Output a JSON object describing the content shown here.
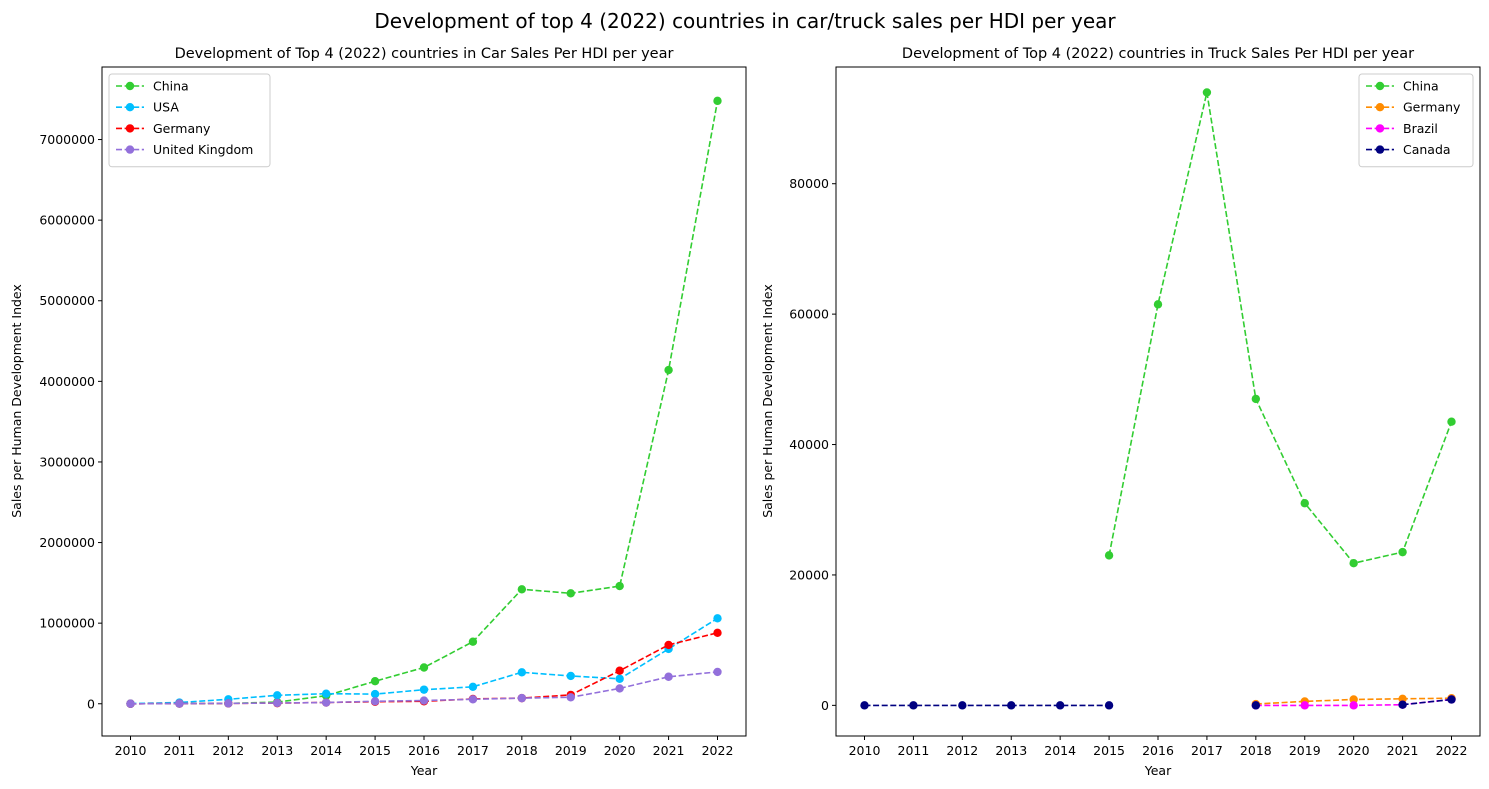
{
  "suptitle": "Development of top 4 (2022) countries in car/truck sales per HDI per year",
  "chart_data": [
    {
      "type": "line",
      "title": "Development of Top 4 (2022) countries in Car Sales Per HDI per year",
      "xlabel": "Year",
      "ylabel": "Sales per Human Development Index",
      "x": [
        "2010",
        "2011",
        "2012",
        "2013",
        "2014",
        "2015",
        "2016",
        "2017",
        "2018",
        "2019",
        "2020",
        "2021",
        "2022"
      ],
      "ylim": [
        -400000,
        7900000
      ],
      "yticks": [
        0,
        1000000,
        2000000,
        3000000,
        4000000,
        5000000,
        6000000,
        7000000
      ],
      "ytick_labels": [
        "0",
        "1000000",
        "2000000",
        "3000000",
        "4000000",
        "5000000",
        "6000000",
        "7000000"
      ],
      "grid": false,
      "legend_position": "upper left",
      "series": [
        {
          "name": "China",
          "color": "#32cd32",
          "values": [
            500,
            2000,
            5000,
            20000,
            100000,
            280000,
            450000,
            770000,
            1420000,
            1370000,
            1460000,
            4140000,
            7480000
          ]
        },
        {
          "name": "USA",
          "color": "#00bfff",
          "values": [
            2000,
            15000,
            55000,
            105000,
            125000,
            120000,
            175000,
            210000,
            390000,
            345000,
            310000,
            680000,
            1060000
          ]
        },
        {
          "name": "Germany",
          "color": "#ff0000",
          "values": [
            0,
            2000,
            4000,
            8000,
            15000,
            25000,
            30000,
            60000,
            70000,
            110000,
            410000,
            730000,
            880000
          ]
        },
        {
          "name": "United Kingdom",
          "color": "#9370db",
          "values": [
            0,
            2000,
            5000,
            10000,
            15000,
            30000,
            40000,
            55000,
            70000,
            80000,
            190000,
            335000,
            395000
          ]
        }
      ]
    },
    {
      "type": "line",
      "title": "Development of Top 4 (2022) countries in Truck Sales Per HDI per year",
      "xlabel": "Year",
      "ylabel": "Sales per Human Development Index",
      "x": [
        "2010",
        "2011",
        "2012",
        "2013",
        "2014",
        "2015",
        "2016",
        "2017",
        "2018",
        "2019",
        "2020",
        "2021",
        "2022"
      ],
      "ylim": [
        -4700,
        97900
      ],
      "yticks": [
        0,
        20000,
        40000,
        60000,
        80000
      ],
      "ytick_labels": [
        "0",
        "20000",
        "40000",
        "60000",
        "80000"
      ],
      "grid": false,
      "legend_position": "upper right",
      "series": [
        {
          "name": "China",
          "color": "#32cd32",
          "values": [
            null,
            null,
            null,
            null,
            null,
            23000,
            61500,
            94000,
            47000,
            31000,
            21800,
            23500,
            43500
          ]
        },
        {
          "name": "Germany",
          "color": "#ff8c00",
          "values": [
            null,
            null,
            null,
            null,
            null,
            null,
            null,
            null,
            200,
            600,
            900,
            1000,
            1100
          ]
        },
        {
          "name": "Brazil",
          "color": "#ff00ff",
          "values": [
            null,
            null,
            null,
            null,
            null,
            null,
            null,
            null,
            0,
            0,
            0,
            100,
            900
          ]
        },
        {
          "name": "Canada",
          "color": "#000080",
          "values": [
            0,
            0,
            0,
            0,
            0,
            0,
            null,
            null,
            0,
            null,
            null,
            100,
            900
          ]
        }
      ]
    }
  ]
}
